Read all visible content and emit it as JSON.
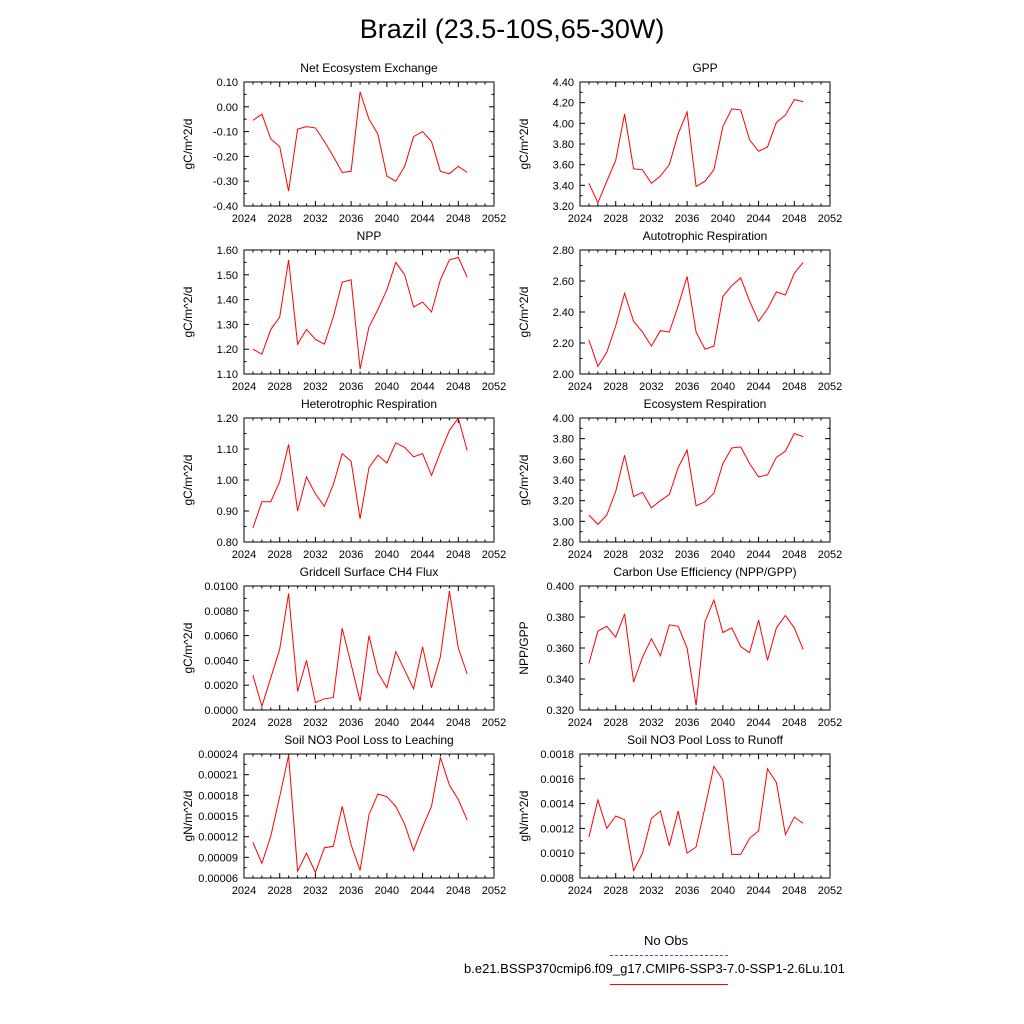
{
  "figure": {
    "title": "Brazil (23.5-10S,65-30W)"
  },
  "legend": {
    "obs_label": "No Obs",
    "obs_color": "#4a4aff",
    "case_label": "b.e21.BSSP370cmip6.f09_g17.CMIP6-SSP3-7.0-SSP1-2.6Lu.101",
    "case_color": "#ff0000"
  },
  "chart_data": [
    {
      "type": "line",
      "title": "Net Ecosystem Exchange",
      "xlabel": "",
      "ylabel": "gC/m^2/d",
      "xlim": [
        2024,
        2052
      ],
      "ylim": [
        -0.4,
        0.1
      ],
      "xticks": [
        "2024",
        "2028",
        "2032",
        "2036",
        "2040",
        "2044",
        "2048",
        "2052"
      ],
      "yticks": [
        "0.10",
        "0.00",
        "-0.10",
        "-0.20",
        "-0.30",
        "-0.40"
      ],
      "x": [
        2025,
        2026,
        2027,
        2028,
        2029,
        2030,
        2031,
        2032,
        2033,
        2034,
        2035,
        2036,
        2037,
        2038,
        2039,
        2040,
        2041,
        2042,
        2043,
        2044,
        2045,
        2046,
        2047,
        2048,
        2049
      ],
      "series": [
        {
          "values": [
            -0.055,
            -0.03,
            -0.13,
            -0.16,
            -0.34,
            -0.09,
            -0.08,
            -0.085,
            -0.14,
            -0.2,
            -0.265,
            -0.26,
            0.06,
            -0.05,
            -0.11,
            -0.28,
            -0.3,
            -0.24,
            -0.12,
            -0.1,
            -0.14,
            -0.26,
            -0.27,
            -0.24,
            -0.265
          ],
          "color": "#ff0000"
        }
      ]
    },
    {
      "type": "line",
      "title": "GPP",
      "xlabel": "",
      "ylabel": "gC/m^2/d",
      "xlim": [
        2024,
        2052
      ],
      "ylim": [
        3.2,
        4.4
      ],
      "xticks": [
        "2024",
        "2028",
        "2032",
        "2036",
        "2040",
        "2044",
        "2048",
        "2052"
      ],
      "yticks": [
        "4.40",
        "4.20",
        "4.00",
        "3.80",
        "3.60",
        "3.40",
        "3.20"
      ],
      "x": [
        2025,
        2026,
        2027,
        2028,
        2029,
        2030,
        2031,
        2032,
        2033,
        2034,
        2035,
        2036,
        2037,
        2038,
        2039,
        2040,
        2041,
        2042,
        2043,
        2044,
        2045,
        2046,
        2047,
        2048,
        2049
      ],
      "series": [
        {
          "values": [
            3.42,
            3.23,
            3.44,
            3.64,
            4.09,
            3.56,
            3.55,
            3.42,
            3.49,
            3.6,
            3.9,
            4.11,
            3.39,
            3.44,
            3.55,
            3.97,
            4.14,
            4.13,
            3.84,
            3.73,
            3.77,
            4.01,
            4.08,
            4.23,
            4.21
          ],
          "color": "#ff0000"
        }
      ]
    },
    {
      "type": "line",
      "title": "NPP",
      "xlabel": "",
      "ylabel": "gC/m^2/d",
      "xlim": [
        2024,
        2052
      ],
      "ylim": [
        1.1,
        1.6
      ],
      "xticks": [
        "2024",
        "2028",
        "2032",
        "2036",
        "2040",
        "2044",
        "2048",
        "2052"
      ],
      "yticks": [
        "1.60",
        "1.50",
        "1.40",
        "1.30",
        "1.20",
        "1.10"
      ],
      "x": [
        2025,
        2026,
        2027,
        2028,
        2029,
        2030,
        2031,
        2032,
        2033,
        2034,
        2035,
        2036,
        2037,
        2038,
        2039,
        2040,
        2041,
        2042,
        2043,
        2044,
        2045,
        2046,
        2047,
        2048,
        2049
      ],
      "series": [
        {
          "values": [
            1.2,
            1.18,
            1.28,
            1.33,
            1.56,
            1.22,
            1.28,
            1.24,
            1.22,
            1.33,
            1.47,
            1.48,
            1.12,
            1.29,
            1.36,
            1.44,
            1.55,
            1.5,
            1.37,
            1.39,
            1.35,
            1.48,
            1.56,
            1.57,
            1.49
          ],
          "color": "#ff0000"
        }
      ]
    },
    {
      "type": "line",
      "title": "Autotrophic Respiration",
      "xlabel": "",
      "ylabel": "gC/m^2/d",
      "xlim": [
        2024,
        2052
      ],
      "ylim": [
        2.0,
        2.8
      ],
      "xticks": [
        "2024",
        "2028",
        "2032",
        "2036",
        "2040",
        "2044",
        "2048",
        "2052"
      ],
      "yticks": [
        "2.80",
        "2.60",
        "2.40",
        "2.20",
        "2.00"
      ],
      "x": [
        2025,
        2026,
        2027,
        2028,
        2029,
        2030,
        2031,
        2032,
        2033,
        2034,
        2035,
        2036,
        2037,
        2038,
        2039,
        2040,
        2041,
        2042,
        2043,
        2044,
        2045,
        2046,
        2047,
        2048,
        2049
      ],
      "series": [
        {
          "values": [
            2.22,
            2.05,
            2.14,
            2.31,
            2.52,
            2.34,
            2.27,
            2.18,
            2.28,
            2.27,
            2.44,
            2.63,
            2.27,
            2.16,
            2.18,
            2.5,
            2.57,
            2.62,
            2.47,
            2.34,
            2.42,
            2.53,
            2.51,
            2.65,
            2.72
          ],
          "color": "#ff0000"
        }
      ]
    },
    {
      "type": "line",
      "title": "Heterotrophic Respiration",
      "xlabel": "",
      "ylabel": "gC/m^2/d",
      "xlim": [
        2024,
        2052
      ],
      "ylim": [
        0.8,
        1.2
      ],
      "xticks": [
        "2024",
        "2028",
        "2032",
        "2036",
        "2040",
        "2044",
        "2048",
        "2052"
      ],
      "yticks": [
        "1.20",
        "1.10",
        "1.00",
        "0.90",
        "0.80"
      ],
      "x": [
        2025,
        2026,
        2027,
        2028,
        2029,
        2030,
        2031,
        2032,
        2033,
        2034,
        2035,
        2036,
        2037,
        2038,
        2039,
        2040,
        2041,
        2042,
        2043,
        2044,
        2045,
        2046,
        2047,
        2048,
        2049
      ],
      "series": [
        {
          "values": [
            0.845,
            0.93,
            0.93,
            0.995,
            1.115,
            0.9,
            1.01,
            0.955,
            0.915,
            0.985,
            1.085,
            1.06,
            0.875,
            1.04,
            1.08,
            1.055,
            1.12,
            1.105,
            1.075,
            1.085,
            1.015,
            1.09,
            1.16,
            1.2,
            1.095
          ],
          "color": "#ff0000"
        }
      ]
    },
    {
      "type": "line",
      "title": "Ecosystem Respiration",
      "xlabel": "",
      "ylabel": "gC/m^2/d",
      "xlim": [
        2024,
        2052
      ],
      "ylim": [
        2.8,
        4.0
      ],
      "xticks": [
        "2024",
        "2028",
        "2032",
        "2036",
        "2040",
        "2044",
        "2048",
        "2052"
      ],
      "yticks": [
        "4.00",
        "3.80",
        "3.60",
        "3.40",
        "3.20",
        "3.00",
        "2.80"
      ],
      "x": [
        2025,
        2026,
        2027,
        2028,
        2029,
        2030,
        2031,
        2032,
        2033,
        2034,
        2035,
        2036,
        2037,
        2038,
        2039,
        2040,
        2041,
        2042,
        2043,
        2044,
        2045,
        2046,
        2047,
        2048,
        2049
      ],
      "series": [
        {
          "values": [
            3.06,
            2.97,
            3.06,
            3.29,
            3.64,
            3.24,
            3.28,
            3.13,
            3.2,
            3.26,
            3.52,
            3.69,
            3.15,
            3.19,
            3.27,
            3.56,
            3.71,
            3.72,
            3.56,
            3.43,
            3.45,
            3.62,
            3.68,
            3.85,
            3.82
          ],
          "color": "#ff0000"
        }
      ]
    },
    {
      "type": "line",
      "title": "Gridcell Surface CH4 Flux",
      "xlabel": "",
      "ylabel": "gC/m^2/d",
      "xlim": [
        2024,
        2052
      ],
      "ylim": [
        0.0,
        0.01
      ],
      "xticks": [
        "2024",
        "2028",
        "2032",
        "2036",
        "2040",
        "2044",
        "2048",
        "2052"
      ],
      "yticks": [
        "0.0100",
        "0.0080",
        "0.0060",
        "0.0040",
        "0.0020",
        "0.0000"
      ],
      "x": [
        2025,
        2026,
        2027,
        2028,
        2029,
        2030,
        2031,
        2032,
        2033,
        2034,
        2035,
        2036,
        2037,
        2038,
        2039,
        2040,
        2041,
        2042,
        2043,
        2044,
        2045,
        2046,
        2047,
        2048,
        2049
      ],
      "series": [
        {
          "values": [
            0.0028,
            0.0003,
            0.0026,
            0.0049,
            0.0094,
            0.0015,
            0.004,
            0.0006,
            0.0009,
            0.001,
            0.0066,
            0.0037,
            0.0007,
            0.006,
            0.003,
            0.0018,
            0.0047,
            0.0032,
            0.0017,
            0.0051,
            0.0018,
            0.0043,
            0.0096,
            0.005,
            0.0029
          ],
          "color": "#ff0000"
        }
      ]
    },
    {
      "type": "line",
      "title": "Carbon Use Efficiency (NPP/GPP)",
      "xlabel": "",
      "ylabel": "NPP/GPP",
      "xlim": [
        2024,
        2052
      ],
      "ylim": [
        0.32,
        0.4
      ],
      "xticks": [
        "2024",
        "2028",
        "2032",
        "2036",
        "2040",
        "2044",
        "2048",
        "2052"
      ],
      "yticks": [
        "0.400",
        "0.380",
        "0.360",
        "0.340",
        "0.320"
      ],
      "x": [
        2025,
        2026,
        2027,
        2028,
        2029,
        2030,
        2031,
        2032,
        2033,
        2034,
        2035,
        2036,
        2037,
        2038,
        2039,
        2040,
        2041,
        2042,
        2043,
        2044,
        2045,
        2046,
        2047,
        2048,
        2049
      ],
      "series": [
        {
          "values": [
            0.35,
            0.371,
            0.374,
            0.367,
            0.382,
            0.338,
            0.354,
            0.366,
            0.355,
            0.375,
            0.374,
            0.36,
            0.323,
            0.377,
            0.391,
            0.37,
            0.373,
            0.361,
            0.357,
            0.378,
            0.352,
            0.373,
            0.381,
            0.373,
            0.359
          ],
          "color": "#ff0000"
        }
      ]
    },
    {
      "type": "line",
      "title": "Soil NO3 Pool Loss to Leaching",
      "xlabel": "",
      "ylabel": "gN/m^2/d",
      "xlim": [
        2024,
        2052
      ],
      "ylim": [
        6e-05,
        0.00024
      ],
      "xticks": [
        "2024",
        "2028",
        "2032",
        "2036",
        "2040",
        "2044",
        "2048",
        "2052"
      ],
      "yticks": [
        "0.00024",
        "0.00021",
        "0.00018",
        "0.00015",
        "0.00012",
        "0.00009",
        "0.00006"
      ],
      "x": [
        2025,
        2026,
        2027,
        2028,
        2029,
        2030,
        2031,
        2032,
        2033,
        2034,
        2035,
        2036,
        2037,
        2038,
        2039,
        2040,
        2041,
        2042,
        2043,
        2044,
        2045,
        2046,
        2047,
        2048,
        2049
      ],
      "series": [
        {
          "values": [
            0.000112,
            8.1e-05,
            0.000121,
            0.000178,
            0.000238,
            7e-05,
            9.6e-05,
            6.8e-05,
            0.000104,
            0.000106,
            0.000164,
            0.000108,
            7.1e-05,
            0.000152,
            0.000182,
            0.000178,
            0.000164,
            0.000138,
            0.0001,
            0.000134,
            0.000164,
            0.000235,
            0.000195,
            0.000174,
            0.000144
          ],
          "color": "#ff0000"
        }
      ]
    },
    {
      "type": "line",
      "title": "Soil NO3 Pool Loss to Runoff",
      "xlabel": "",
      "ylabel": "gN/m^2/d",
      "xlim": [
        2024,
        2052
      ],
      "ylim": [
        0.0008,
        0.0018
      ],
      "xticks": [
        "2024",
        "2028",
        "2032",
        "2036",
        "2040",
        "2044",
        "2048",
        "2052"
      ],
      "yticks": [
        "0.0018",
        "0.0016",
        "0.0014",
        "0.0012",
        "0.0010",
        "0.0008"
      ],
      "x": [
        2025,
        2026,
        2027,
        2028,
        2029,
        2030,
        2031,
        2032,
        2033,
        2034,
        2035,
        2036,
        2037,
        2038,
        2039,
        2040,
        2041,
        2042,
        2043,
        2044,
        2045,
        2046,
        2047,
        2048,
        2049
      ],
      "series": [
        {
          "values": [
            0.00113,
            0.00143,
            0.0012,
            0.0013,
            0.00127,
            0.00086,
            0.001,
            0.00128,
            0.00134,
            0.00106,
            0.00134,
            0.001,
            0.00105,
            0.00137,
            0.0017,
            0.00159,
            0.00099,
            0.00099,
            0.00112,
            0.00118,
            0.00168,
            0.00157,
            0.00115,
            0.00129,
            0.00124
          ],
          "color": "#ff0000"
        }
      ]
    }
  ]
}
